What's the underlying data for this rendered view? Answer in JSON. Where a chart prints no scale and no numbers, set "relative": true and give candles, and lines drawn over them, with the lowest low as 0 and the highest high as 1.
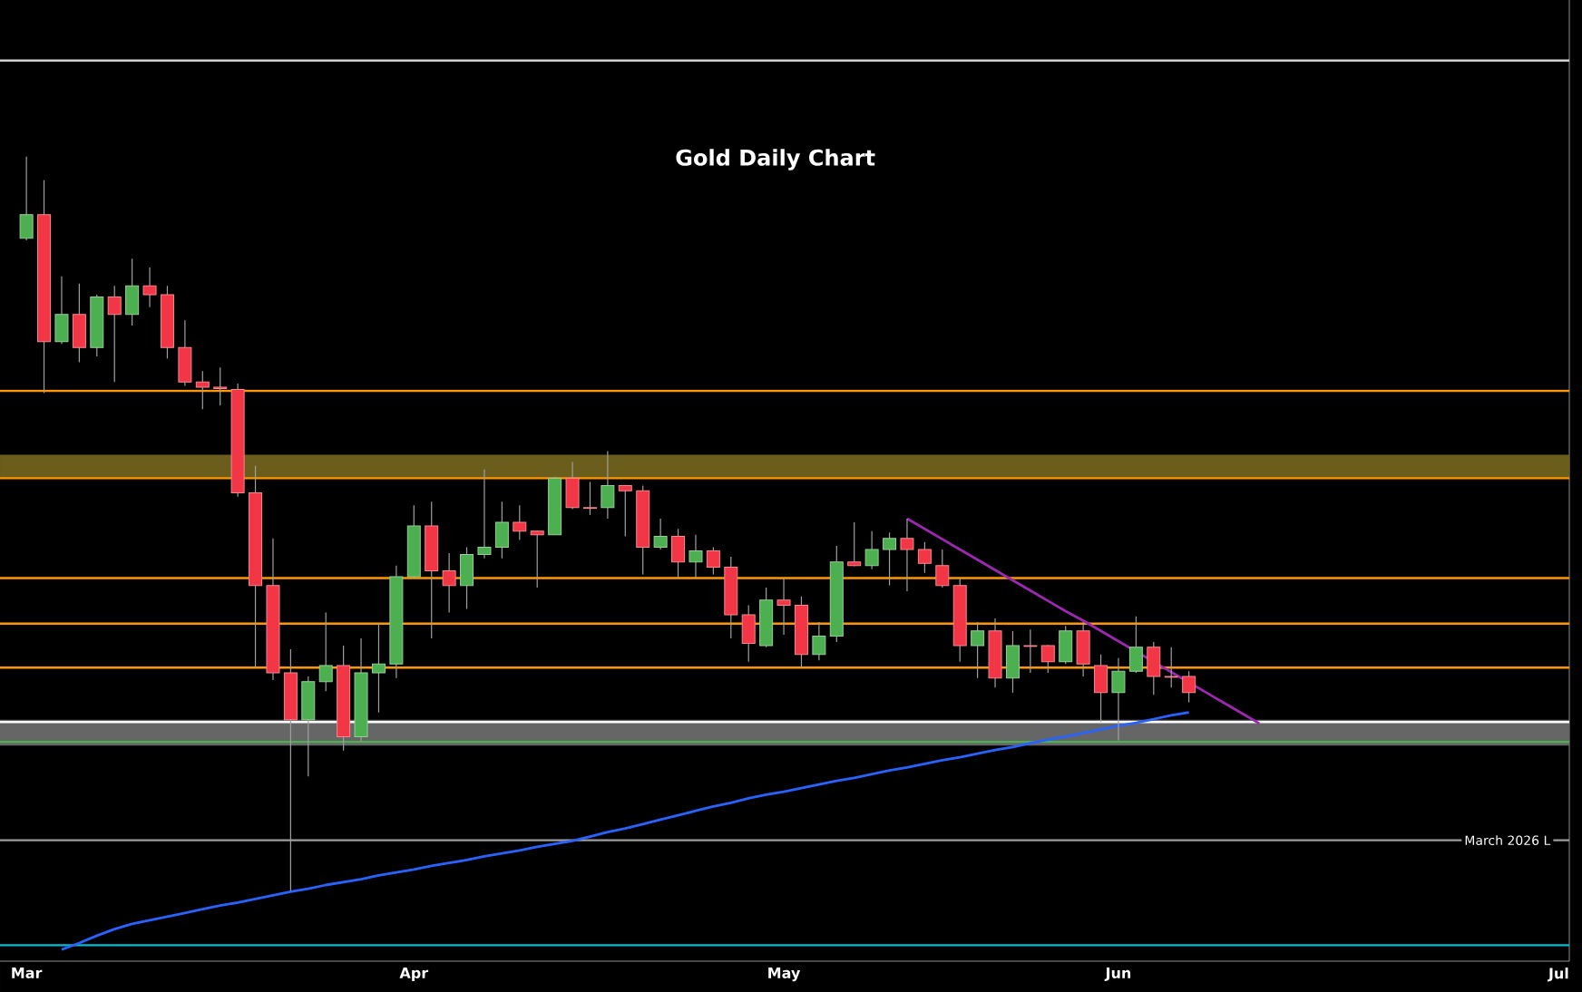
{
  "chart_data": {
    "type": "candlestick",
    "title": "Gold Daily Chart",
    "relative": true,
    "categories": [
      "Mar",
      null,
      null,
      null,
      null,
      null,
      null,
      null,
      null,
      null,
      null,
      null,
      null,
      null,
      null,
      null,
      null,
      null,
      null,
      null,
      null,
      null,
      "Apr",
      null,
      null,
      null,
      null,
      null,
      null,
      null,
      null,
      null,
      null,
      null,
      null,
      null,
      null,
      null,
      null,
      null,
      null,
      null,
      null,
      "May",
      null,
      null,
      null,
      null,
      null,
      null,
      null,
      null,
      null,
      null,
      null,
      null,
      null,
      null,
      null,
      null,
      null,
      null,
      "Jun",
      null,
      null,
      null,
      null,
      null,
      null,
      null,
      null,
      null,
      null,
      null,
      null,
      null,
      null,
      null,
      null,
      null,
      null,
      null,
      null,
      null,
      null,
      null,
      null,
      "Jul"
    ],
    "ohlc": [
      [
        0.889,
        1.0,
        0.886,
        0.921
      ],
      [
        0.921,
        0.968,
        0.678,
        0.748
      ],
      [
        0.748,
        0.837,
        0.745,
        0.785
      ],
      [
        0.785,
        0.827,
        0.72,
        0.74
      ],
      [
        0.74,
        0.812,
        0.728,
        0.809
      ],
      [
        0.809,
        0.824,
        0.693,
        0.785
      ],
      [
        0.785,
        0.861,
        0.77,
        0.824
      ],
      [
        0.824,
        0.849,
        0.795,
        0.812
      ],
      [
        0.812,
        0.824,
        0.725,
        0.74
      ],
      [
        0.74,
        0.777,
        0.688,
        0.693
      ],
      [
        0.693,
        0.708,
        0.656,
        0.686
      ],
      [
        0.686,
        0.713,
        0.661,
        0.684
      ],
      [
        0.683,
        0.691,
        0.537,
        0.542
      ],
      [
        0.542,
        0.579,
        0.304,
        0.416
      ],
      [
        0.416,
        0.48,
        0.287,
        0.297
      ],
      [
        0.297,
        0.329,
        0.0,
        0.233
      ],
      [
        0.233,
        0.292,
        0.156,
        0.285
      ],
      [
        0.285,
        0.379,
        0.272,
        0.307
      ],
      [
        0.307,
        0.334,
        0.191,
        0.21
      ],
      [
        0.21,
        0.344,
        0.203,
        0.297
      ],
      [
        0.297,
        0.364,
        0.243,
        0.309
      ],
      [
        0.309,
        0.443,
        0.29,
        0.428
      ],
      [
        0.428,
        0.525,
        0.426,
        0.497
      ],
      [
        0.497,
        0.53,
        0.344,
        0.436
      ],
      [
        0.436,
        0.46,
        0.379,
        0.416
      ],
      [
        0.416,
        0.468,
        0.384,
        0.458
      ],
      [
        0.458,
        0.574,
        0.453,
        0.468
      ],
      [
        0.468,
        0.53,
        0.453,
        0.502
      ],
      [
        0.502,
        0.525,
        0.478,
        0.49
      ],
      [
        0.49,
        0.491,
        0.413,
        0.485
      ],
      [
        0.485,
        0.564,
        0.485,
        0.562
      ],
      [
        0.562,
        0.584,
        0.52,
        0.522
      ],
      [
        0.522,
        0.557,
        0.512,
        0.521
      ],
      [
        0.522,
        0.599,
        0.507,
        0.552
      ],
      [
        0.552,
        0.553,
        0.483,
        0.545
      ],
      [
        0.545,
        0.552,
        0.431,
        0.468
      ],
      [
        0.468,
        0.507,
        0.465,
        0.483
      ],
      [
        0.483,
        0.493,
        0.426,
        0.448
      ],
      [
        0.448,
        0.485,
        0.426,
        0.463
      ],
      [
        0.463,
        0.468,
        0.431,
        0.441
      ],
      [
        0.441,
        0.455,
        0.344,
        0.376
      ],
      [
        0.376,
        0.389,
        0.312,
        0.337
      ],
      [
        0.334,
        0.413,
        0.332,
        0.396
      ],
      [
        0.396,
        0.426,
        0.349,
        0.389
      ],
      [
        0.389,
        0.401,
        0.304,
        0.322
      ],
      [
        0.322,
        0.366,
        0.314,
        0.347
      ],
      [
        0.347,
        0.47,
        0.339,
        0.448
      ],
      [
        0.448,
        0.502,
        0.442,
        0.443
      ],
      [
        0.443,
        0.49,
        0.438,
        0.465
      ],
      [
        0.465,
        0.488,
        0.416,
        0.48
      ],
      [
        0.48,
        0.507,
        0.408,
        0.465
      ],
      [
        0.465,
        0.475,
        0.433,
        0.446
      ],
      [
        0.443,
        0.465,
        0.413,
        0.416
      ],
      [
        0.416,
        0.426,
        0.312,
        0.334
      ],
      [
        0.334,
        0.366,
        0.29,
        0.354
      ],
      [
        0.354,
        0.371,
        0.277,
        0.29
      ],
      [
        0.29,
        0.354,
        0.27,
        0.334
      ],
      [
        0.334,
        0.356,
        0.297,
        0.333
      ],
      [
        0.334,
        0.335,
        0.297,
        0.312
      ],
      [
        0.312,
        0.361,
        0.309,
        0.354
      ],
      [
        0.354,
        0.366,
        0.292,
        0.309
      ],
      [
        0.307,
        0.322,
        0.23,
        0.27
      ],
      [
        0.27,
        0.317,
        0.205,
        0.299
      ],
      [
        0.299,
        0.374,
        0.297,
        0.332
      ],
      [
        0.332,
        0.339,
        0.267,
        0.292
      ],
      [
        0.292,
        0.332,
        0.277,
        0.291
      ],
      [
        0.292,
        0.299,
        0.257,
        0.27
      ],
      null,
      null,
      null,
      null,
      null,
      null,
      null,
      null,
      null,
      null,
      null,
      null,
      null,
      null,
      null,
      null,
      null,
      null,
      null,
      null,
      null
    ],
    "series": [
      {
        "type": "line",
        "color": "#2962ff",
        "values": [
          null,
          null,
          -0.08,
          -0.071,
          -0.061,
          -0.052,
          -0.045,
          -0.04,
          -0.035,
          -0.03,
          -0.025,
          -0.02,
          -0.016,
          -0.011,
          -0.006,
          -0.001,
          0.003,
          0.008,
          0.012,
          0.016,
          0.021,
          0.025,
          0.029,
          0.034,
          0.038,
          0.042,
          0.047,
          0.051,
          0.055,
          0.06,
          0.064,
          0.068,
          0.074,
          0.08,
          0.085,
          0.091,
          0.097,
          0.103,
          0.109,
          0.115,
          0.12,
          0.126,
          0.131,
          0.135,
          0.14,
          0.145,
          0.15,
          0.154,
          0.159,
          0.164,
          0.168,
          0.173,
          0.178,
          0.182,
          0.187,
          0.192,
          0.196,
          0.201,
          0.206,
          0.21,
          0.215,
          0.22,
          0.225,
          0.229,
          0.234,
          0.239,
          0.243,
          null,
          null,
          null,
          null,
          null,
          null,
          null,
          null,
          null,
          null,
          null,
          null,
          null,
          null,
          null,
          null,
          null,
          null,
          null,
          null,
          null
        ]
      },
      {
        "type": "line",
        "color": "#9c27b0",
        "values": [
          null,
          null,
          null,
          null,
          null,
          null,
          null,
          null,
          null,
          null,
          null,
          null,
          null,
          null,
          null,
          null,
          null,
          null,
          null,
          null,
          null,
          null,
          null,
          null,
          null,
          null,
          null,
          null,
          null,
          null,
          null,
          null,
          null,
          null,
          null,
          null,
          null,
          null,
          null,
          null,
          null,
          null,
          null,
          null,
          null,
          null,
          null,
          null,
          null,
          null,
          0.507,
          0.493,
          0.479,
          0.465,
          0.451,
          0.437,
          0.423,
          0.409,
          0.395,
          0.381,
          0.368,
          0.354,
          0.34,
          0.326,
          0.312,
          0.298,
          0.284,
          0.27,
          0.256,
          0.242,
          0.228,
          null,
          null,
          null,
          null,
          null,
          null,
          null,
          null,
          null,
          null,
          null,
          null,
          null,
          null,
          null,
          null,
          null
        ]
      }
    ],
    "bands": [
      {
        "axis": "y",
        "from": 0.562,
        "to": 0.594,
        "color": "#6b5e1c"
      },
      {
        "axis": "y",
        "from": 0.198,
        "to": 0.233,
        "color": "#666666"
      }
    ],
    "ref_lines": [
      {
        "axis": "y",
        "value": 1.131,
        "color": "#d0d0d0"
      },
      {
        "axis": "y",
        "value": 0.681,
        "color": "#ff9800"
      },
      {
        "axis": "y",
        "value": 0.562,
        "color": "#ff9800"
      },
      {
        "axis": "y",
        "value": 0.426,
        "color": "#ff9800"
      },
      {
        "axis": "y",
        "value": 0.364,
        "color": "#ff9800"
      },
      {
        "axis": "y",
        "value": 0.304,
        "color": "#ff9800"
      },
      {
        "axis": "y",
        "value": 0.23,
        "color": "#ffffff"
      },
      {
        "axis": "y",
        "value": 0.203,
        "color": "#4caf50"
      },
      {
        "axis": "y",
        "value": 0.069,
        "color": "#9e9e9e",
        "label": "March 2026 L"
      },
      {
        "axis": "y",
        "value": -0.074,
        "color": "#00bcd4"
      }
    ]
  }
}
